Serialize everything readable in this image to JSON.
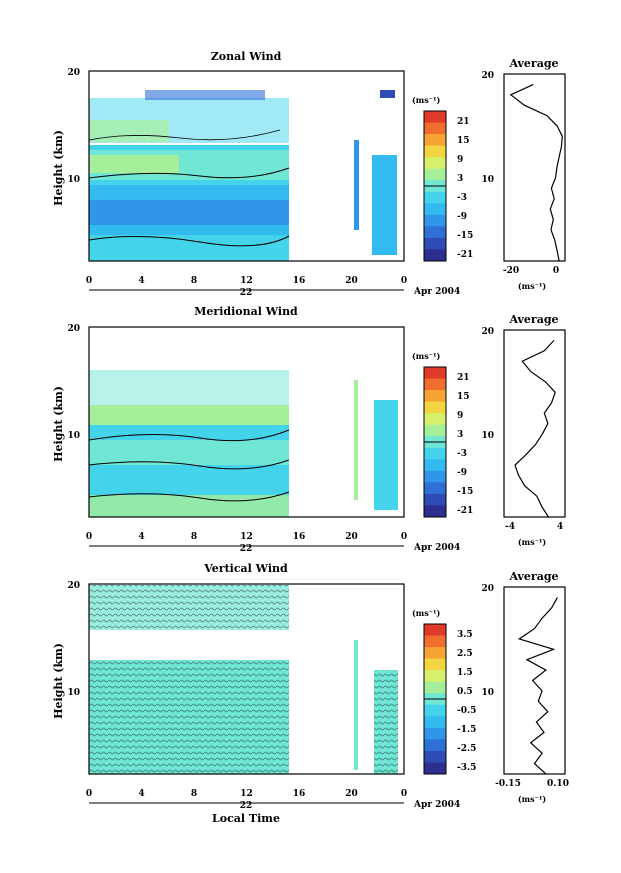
{
  "date_label": "Apr 2004",
  "xlabel_bottom": "Local Time",
  "colormap": [
    "#2b2f8f",
    "#2f4bb6",
    "#2f6fd8",
    "#2f96ea",
    "#33bbf0",
    "#43d3ea",
    "#6fe7d4",
    "#a6ef9a",
    "#d7f06a",
    "#f2d541",
    "#f6a534",
    "#f06d2e",
    "#df3a2a"
  ],
  "chart_data": [
    {
      "type": "heatmap",
      "title": "Zonal Wind",
      "ylabel": "Height (km)",
      "xlim": [
        0,
        24
      ],
      "ylim": [
        2,
        20
      ],
      "xticks": [
        "0",
        "4",
        "8",
        "12",
        "16",
        "20",
        "0"
      ],
      "yticks": [
        "20",
        "10"
      ],
      "day_label": "22",
      "colorbar": {
        "unit": "(ms⁻¹)",
        "ticks": [
          "21",
          "15",
          "9",
          "3",
          "-3",
          "-9",
          "-15",
          "-21"
        ],
        "range": [
          -24,
          24
        ]
      },
      "data_time_ranges": [
        [
          0,
          15.5
        ],
        [
          20.3,
          20.6
        ],
        [
          21.8,
          24
        ]
      ],
      "profile": {
        "title": "Average",
        "xlabel": "(ms⁻¹)",
        "xticks": [
          "-20",
          "0"
        ],
        "xtick_values": [
          -20,
          0
        ],
        "xlim": [
          -25,
          2
        ],
        "height": [
          2,
          3,
          4,
          5,
          6,
          7,
          8,
          9,
          10,
          11,
          12,
          13,
          14,
          15,
          16,
          17,
          18,
          19
        ],
        "values": [
          -0.6,
          -1.5,
          -2.5,
          -4.2,
          -3.2,
          -4.5,
          -2.8,
          -4.0,
          -2.2,
          -1.6,
          -0.6,
          0.4,
          0.8,
          -1.5,
          -6.0,
          -16.0,
          -22.0,
          -12.0
        ]
      }
    },
    {
      "type": "heatmap",
      "title": "Meridional Wind",
      "ylabel": "Height (km)",
      "xlim": [
        0,
        24
      ],
      "ylim": [
        2,
        20
      ],
      "xticks": [
        "0",
        "4",
        "8",
        "12",
        "16",
        "20",
        "0"
      ],
      "yticks": [
        "20",
        "10"
      ],
      "day_label": "22",
      "colorbar": {
        "unit": "(ms⁻¹)",
        "ticks": [
          "21",
          "15",
          "9",
          "3",
          "-3",
          "-9",
          "-15",
          "-21"
        ],
        "range": [
          -24,
          24
        ]
      },
      "data_time_ranges": [
        [
          0,
          15.5
        ],
        [
          20.3,
          20.5
        ],
        [
          21.8,
          24
        ]
      ],
      "profile": {
        "title": "Average",
        "xlabel": "(ms⁻¹)",
        "xticks": [
          "-4",
          "4"
        ],
        "xtick_values": [
          -4,
          4
        ],
        "xlim": [
          -5,
          5
        ],
        "height": [
          2,
          3,
          4,
          5,
          6,
          7,
          8,
          9,
          10,
          11,
          12,
          13,
          14,
          15,
          16,
          17,
          18,
          19
        ],
        "values": [
          2.3,
          1.2,
          0.4,
          -1.6,
          -2.6,
          -3.2,
          -1.4,
          0.2,
          1.3,
          2.2,
          1.6,
          2.8,
          3.4,
          1.8,
          -0.6,
          -2.0,
          1.6,
          3.2
        ]
      }
    },
    {
      "type": "heatmap",
      "title": "Vertical Wind",
      "ylabel": "Height (km)",
      "xlabel": "Local Time",
      "xlim": [
        0,
        24
      ],
      "ylim": [
        2,
        20
      ],
      "xticks": [
        "0",
        "4",
        "8",
        "12",
        "16",
        "20",
        "0"
      ],
      "yticks": [
        "20",
        "10"
      ],
      "day_label": "22",
      "colorbar": {
        "unit": "(ms⁻¹)",
        "ticks": [
          "3.5",
          "2.5",
          "1.5",
          "0.5",
          "-0.5",
          "-1.5",
          "-2.5",
          "-3.5"
        ],
        "range": [
          -4,
          4
        ]
      },
      "data_time_ranges": [
        [
          0,
          15.5
        ],
        [
          20.3,
          20.5
        ],
        [
          21.8,
          24
        ]
      ],
      "profile": {
        "title": "Average",
        "xlabel": "(ms⁻¹)",
        "xticks": [
          "-0.15",
          "0.10"
        ],
        "xtick_values": [
          -0.15,
          0.1
        ],
        "xlim": [
          -0.2,
          0.12
        ],
        "height": [
          2,
          3,
          4,
          5,
          6,
          7,
          8,
          9,
          10,
          11,
          12,
          13,
          14,
          15,
          16,
          17,
          18,
          19
        ],
        "values": [
          0.02,
          -0.04,
          0.0,
          -0.06,
          0.01,
          -0.03,
          0.03,
          -0.02,
          0.0,
          -0.05,
          0.02,
          -0.08,
          0.06,
          -0.12,
          -0.04,
          0.0,
          0.05,
          0.08
        ]
      }
    }
  ]
}
